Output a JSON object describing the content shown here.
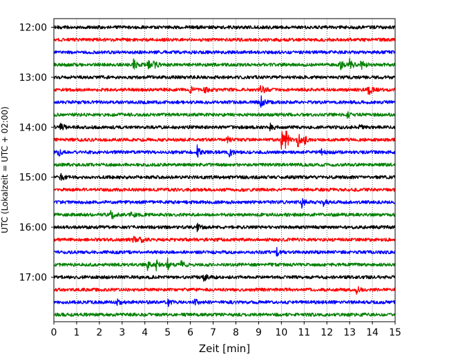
{
  "chart_data": {
    "type": "line",
    "title": "",
    "xlabel": "Zeit  [min]",
    "ylabel": "UTC (Lokalzeit = UTC + 02:00)",
    "xlim": [
      0,
      15
    ],
    "x_ticks": [
      "0",
      "1",
      "2",
      "3",
      "4",
      "5",
      "6",
      "7",
      "8",
      "9",
      "10",
      "11",
      "12",
      "13",
      "14",
      "15"
    ],
    "y_tick_labels": [
      "12:00",
      "13:00",
      "14:00",
      "15:00",
      "16:00",
      "17:00"
    ],
    "grid": "vertical-dotted",
    "colors": [
      "#000000",
      "#ff0000",
      "#0000ff",
      "#008000"
    ],
    "traces": [
      {
        "time": "12:00",
        "events": []
      },
      {
        "time": "12:15",
        "events": []
      },
      {
        "time": "12:30",
        "events": []
      },
      {
        "time": "12:45",
        "events": [
          {
            "t": 3.5,
            "amp": 0.9
          },
          {
            "t": 4.1,
            "amp": 0.9
          },
          {
            "t": 4.4,
            "amp": 0.6
          },
          {
            "t": 12.6,
            "amp": 0.6
          },
          {
            "t": 13.0,
            "amp": 1.0
          },
          {
            "t": 13.5,
            "amp": 1.1
          }
        ]
      },
      {
        "time": "13:00",
        "events": []
      },
      {
        "time": "13:15",
        "events": [
          {
            "t": 6.0,
            "amp": 0.5
          },
          {
            "t": 6.6,
            "amp": 0.6
          },
          {
            "t": 9.1,
            "amp": 0.8
          },
          {
            "t": 13.8,
            "amp": 1.1
          }
        ]
      },
      {
        "time": "13:30",
        "events": [
          {
            "t": 9.1,
            "amp": 1.1
          }
        ]
      },
      {
        "time": "13:45",
        "events": [
          {
            "t": 12.9,
            "amp": 0.4
          }
        ]
      },
      {
        "time": "14:00",
        "events": [
          {
            "t": 0.3,
            "amp": 0.6
          },
          {
            "t": 9.5,
            "amp": 0.6
          },
          {
            "t": 13.4,
            "amp": 0.6
          }
        ]
      },
      {
        "time": "14:15",
        "events": [
          {
            "t": 7.6,
            "amp": 0.5
          },
          {
            "t": 10.0,
            "amp": 1.5
          },
          {
            "t": 10.2,
            "amp": 1.2
          },
          {
            "t": 10.7,
            "amp": 1.3
          },
          {
            "t": 11.0,
            "amp": 0.6
          }
        ]
      },
      {
        "time": "14:30",
        "events": [
          {
            "t": 0.2,
            "amp": 0.5
          },
          {
            "t": 6.3,
            "amp": 1.2
          },
          {
            "t": 7.7,
            "amp": 0.7
          },
          {
            "t": 11.7,
            "amp": 0.6
          }
        ]
      },
      {
        "time": "14:45",
        "events": []
      },
      {
        "time": "15:00",
        "events": [
          {
            "t": 0.3,
            "amp": 0.5
          }
        ]
      },
      {
        "time": "15:15",
        "events": []
      },
      {
        "time": "15:30",
        "events": [
          {
            "t": 10.9,
            "amp": 0.8
          },
          {
            "t": 11.8,
            "amp": 0.7
          }
        ]
      },
      {
        "time": "15:45",
        "events": [
          {
            "t": 2.5,
            "amp": 1.0
          },
          {
            "t": 3.4,
            "amp": 0.4
          }
        ]
      },
      {
        "time": "16:00",
        "events": [
          {
            "t": 6.3,
            "amp": 0.5
          }
        ]
      },
      {
        "time": "16:15",
        "events": [
          {
            "t": 3.5,
            "amp": 0.5
          },
          {
            "t": 3.8,
            "amp": 0.5
          }
        ]
      },
      {
        "time": "16:30",
        "events": [
          {
            "t": 9.8,
            "amp": 0.8
          }
        ]
      },
      {
        "time": "16:45",
        "events": [
          {
            "t": 4.1,
            "amp": 0.8
          },
          {
            "t": 4.5,
            "amp": 0.9
          },
          {
            "t": 5.0,
            "amp": 1.0
          },
          {
            "t": 5.6,
            "amp": 0.5
          }
        ]
      },
      {
        "time": "17:00",
        "events": [
          {
            "t": 6.6,
            "amp": 0.6
          }
        ]
      },
      {
        "time": "17:15",
        "events": [
          {
            "t": 13.3,
            "amp": 0.6
          }
        ]
      },
      {
        "time": "17:30",
        "events": [
          {
            "t": 2.8,
            "amp": 0.4
          },
          {
            "t": 5.0,
            "amp": 0.6
          },
          {
            "t": 6.2,
            "amp": 0.5
          }
        ]
      },
      {
        "time": "17:45",
        "events": []
      }
    ]
  }
}
